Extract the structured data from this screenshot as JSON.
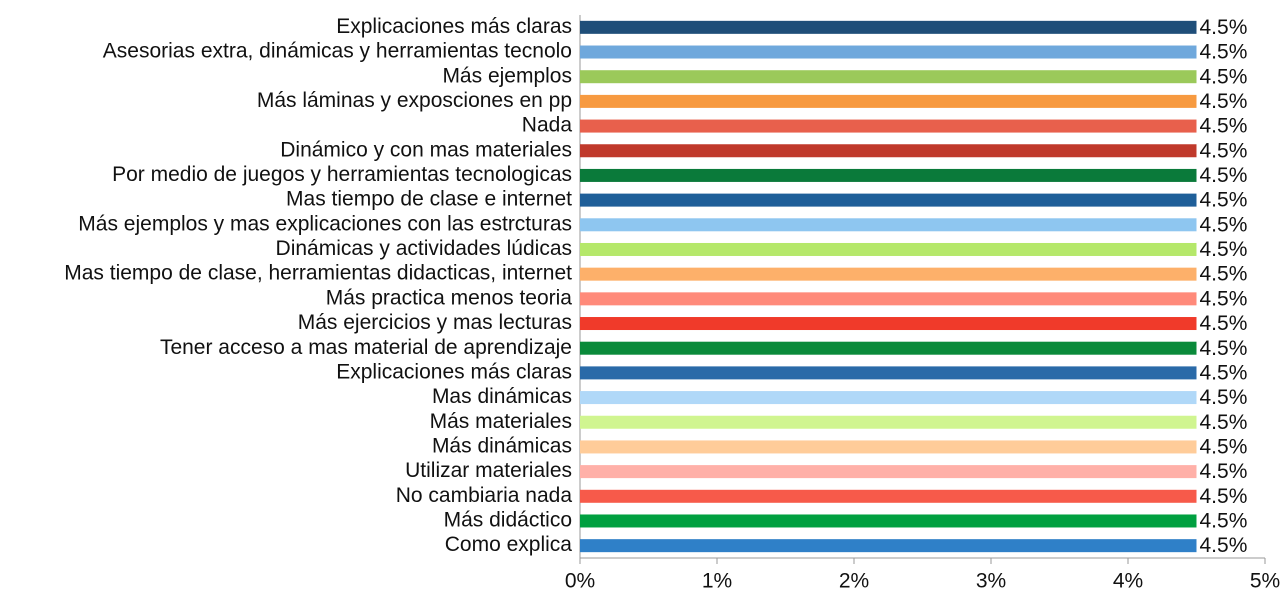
{
  "chart_data": {
    "type": "barh",
    "categories": [
      "Explicaciones más claras",
      "Asesorias extra, dinámicas y herramientas tecnolo",
      "Más ejemplos",
      "Más láminas y exposciones  en pp",
      "Nada",
      "Dinámico y con mas materiales",
      "Por medio de juegos y herramientas tecnologicas",
      "Mas tiempo de clase e internet",
      "Más ejemplos y mas explicaciones con las estrcturas",
      "Dinámicas y actividades lúdicas",
      "Mas tiempo de clase, herramientas didacticas, internet",
      "Más practica menos teoria",
      "Más ejercicios y mas lecturas",
      "Tener acceso a mas material de aprendizaje",
      "Explicaciones más claras",
      "Mas dinámicas",
      "Más materiales",
      "Más dinámicas",
      "Utilizar materiales",
      "No cambiaria nada",
      "Más didáctico",
      "Como explica"
    ],
    "values": [
      4.5,
      4.5,
      4.5,
      4.5,
      4.5,
      4.5,
      4.5,
      4.5,
      4.5,
      4.5,
      4.5,
      4.5,
      4.5,
      4.5,
      4.5,
      4.5,
      4.5,
      4.5,
      4.5,
      4.5,
      4.5,
      4.5
    ],
    "value_labels": [
      "4.5%",
      "4.5%",
      "4.5%",
      "4.5%",
      "4.5%",
      "4.5%",
      "4.5%",
      "4.5%",
      "4.5%",
      "4.5%",
      "4.5%",
      "4.5%",
      "4.5%",
      "4.5%",
      "4.5%",
      "4.5%",
      "4.5%",
      "4.5%",
      "4.5%",
      "4.5%",
      "4.5%",
      "4.5%"
    ],
    "colors": [
      "#1f4e79",
      "#6fa8dc",
      "#9bc95a",
      "#f79a40",
      "#e8604c",
      "#c0392b",
      "#0a7a3a",
      "#1f5f99",
      "#8ec6f0",
      "#b5e86a",
      "#fdb06a",
      "#ff8a7a",
      "#f03a2a",
      "#0a8a3a",
      "#2a6aa8",
      "#b0d8f8",
      "#d0f590",
      "#ffcc99",
      "#ffb0a8",
      "#f75a4a",
      "#00a040",
      "#2f80c8"
    ],
    "xlim": [
      0,
      5
    ],
    "xticks": [
      {
        "value": 0,
        "label": "0%"
      },
      {
        "value": 1,
        "label": "1%"
      },
      {
        "value": 2,
        "label": "2%"
      },
      {
        "value": 3,
        "label": "3%"
      },
      {
        "value": 4,
        "label": "4%"
      },
      {
        "value": 5,
        "label": "5%"
      }
    ]
  }
}
